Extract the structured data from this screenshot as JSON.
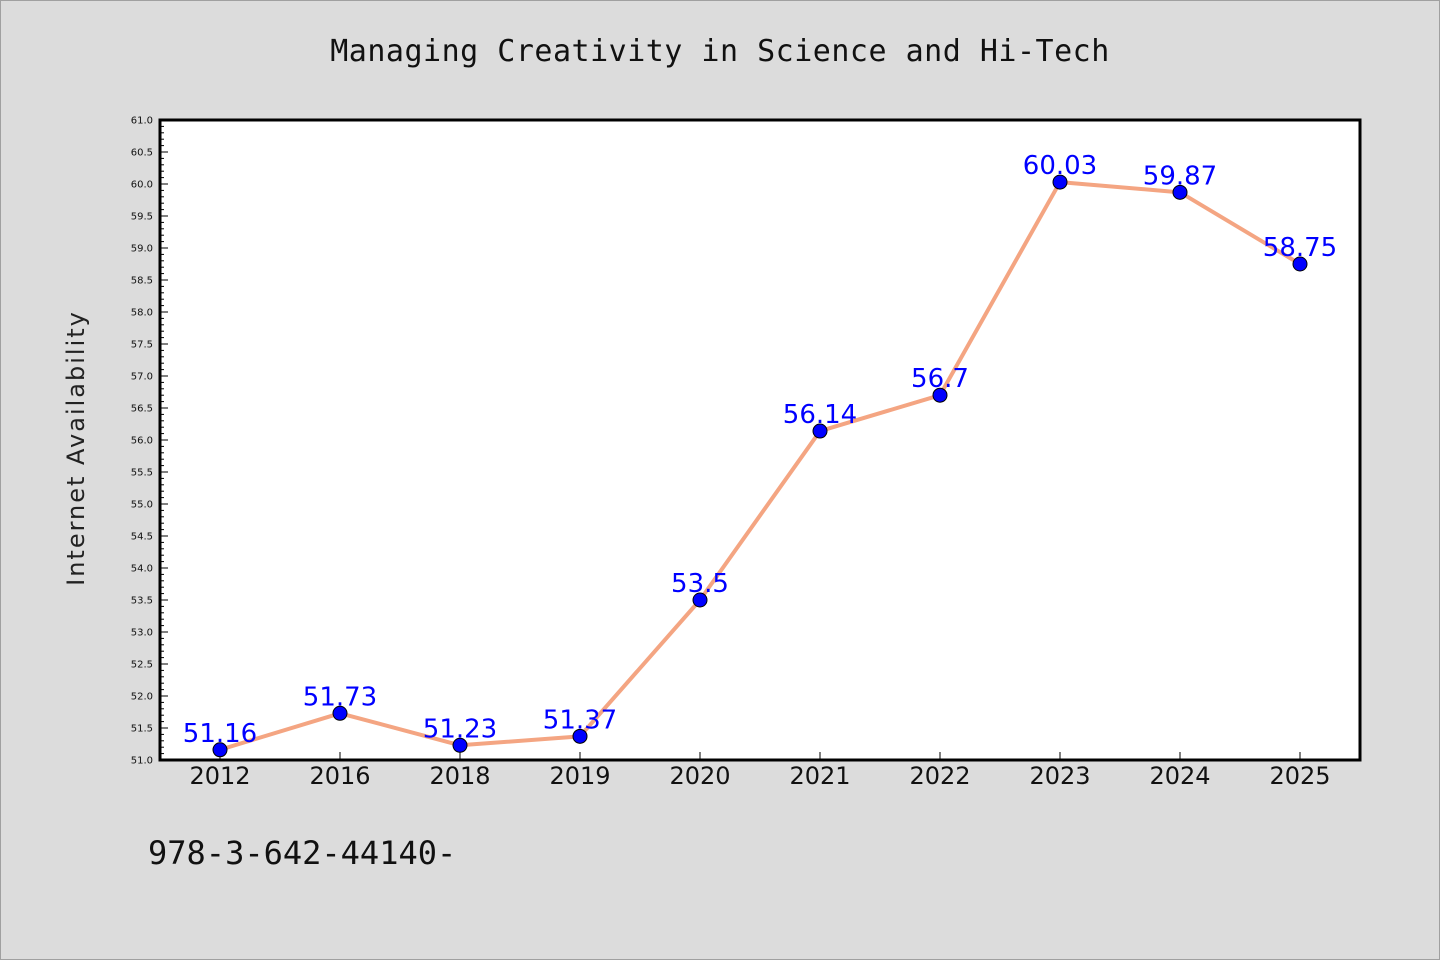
{
  "title": "Managing Creativity in Science and Hi-Tech",
  "footer": "978-3-642-44140-",
  "colors": {
    "background": "#dcdcdc",
    "plot_background": "#ffffff",
    "line": "#f4a582",
    "marker": "#0000ff",
    "data_label": "#0000ff"
  },
  "chart_data": {
    "type": "line",
    "title": "Managing Creativity in Science and Hi-Tech",
    "xlabel": "",
    "ylabel": "Internet Availability",
    "categories": [
      "2012",
      "2016",
      "2018",
      "2019",
      "2020",
      "2021",
      "2022",
      "2023",
      "2024",
      "2025"
    ],
    "values": [
      51.16,
      51.73,
      51.23,
      51.37,
      53.5,
      56.14,
      56.7,
      60.03,
      59.87,
      58.75
    ],
    "data_labels": [
      "51.16",
      "51.73",
      "51.23",
      "51.37",
      "53.5",
      "56.14",
      "56.7",
      "60.03",
      "59.87",
      "58.75"
    ],
    "ylim": [
      51.0,
      61.0
    ],
    "y_ticks": [
      "51.0",
      "51.5",
      "52.0",
      "52.5",
      "53.0",
      "53.5",
      "54.0",
      "54.5",
      "55.0",
      "55.5",
      "56.0",
      "56.5",
      "57.0",
      "57.5",
      "58.0",
      "58.5",
      "59.0",
      "59.5",
      "60.0",
      "60.5",
      "61.0"
    ],
    "grid": false,
    "legend": "none"
  }
}
